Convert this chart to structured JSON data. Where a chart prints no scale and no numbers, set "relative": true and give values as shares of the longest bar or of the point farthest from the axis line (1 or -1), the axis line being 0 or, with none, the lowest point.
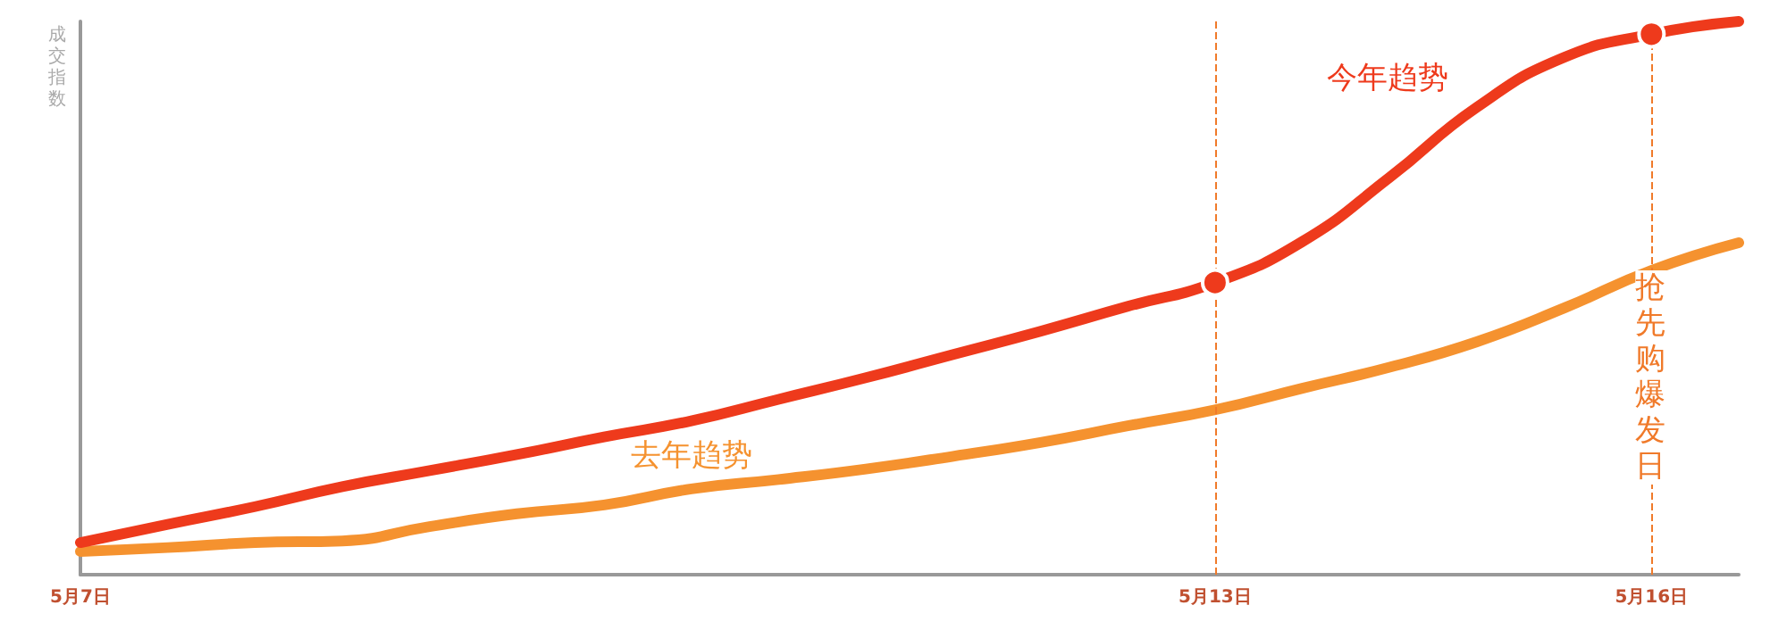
{
  "chart_data": {
    "type": "line",
    "ylabel": "成交指数",
    "relative": true,
    "categories": [
      "5月7日",
      null,
      null,
      null,
      null,
      null,
      null,
      null,
      null,
      null,
      null,
      null,
      null,
      "5月13日",
      null,
      null,
      null,
      null,
      "5月16日",
      null
    ],
    "series": [
      {
        "name": "今年趋势",
        "color": "#ee3a1c",
        "values": [
          0.058,
          0.091,
          0.123,
          0.159,
          0.188,
          0.217,
          0.249,
          0.278,
          0.317,
          0.356,
          0.398,
          0.44,
          0.485,
          0.528,
          0.602,
          0.718,
          0.845,
          0.935,
          0.977,
          1.0
        ]
      },
      {
        "name": "去年趋势",
        "color": "#f5922f",
        "values": [
          0.042,
          0.049,
          0.058,
          0.061,
          0.087,
          0.11,
          0.126,
          0.155,
          0.172,
          0.191,
          0.214,
          0.239,
          0.269,
          0.298,
          0.337,
          0.375,
          0.421,
          0.482,
          0.55,
          0.6
        ]
      }
    ],
    "ref_lines": [
      {
        "axis": "x",
        "value": "5月13日",
        "label": null,
        "color": "#f07a2a",
        "line_style": "dashed"
      },
      {
        "axis": "x",
        "value": "5月16日",
        "label": "抢先购爆发日",
        "color": "#f07a2a",
        "line_style": "dashed"
      }
    ],
    "grid": false,
    "legend": false,
    "line_style": "solid"
  }
}
